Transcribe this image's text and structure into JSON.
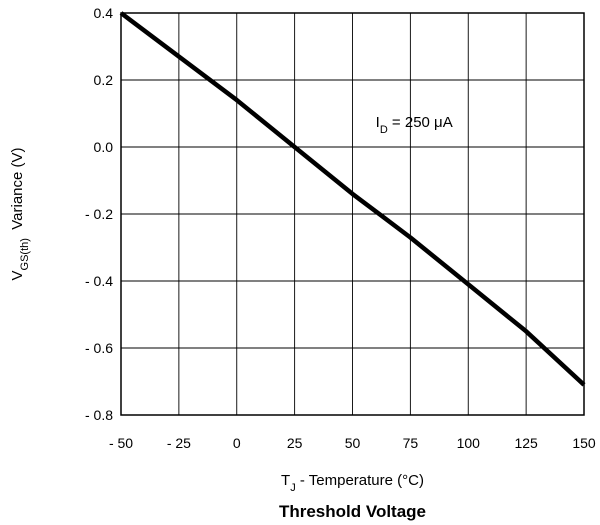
{
  "chart_data": {
    "type": "line",
    "title": "Threshold Voltage",
    "xlabel": {
      "main": "T",
      "sub": "J",
      "rest": " - Temperature (°C)"
    },
    "ylabel": {
      "main": "V",
      "sub": "GS(th)",
      "rest": "  Variance (V)"
    },
    "xlim": [
      -50,
      150
    ],
    "ylim": [
      -0.8,
      0.4
    ],
    "x_ticks": [
      -50,
      -25,
      0,
      25,
      50,
      75,
      100,
      125,
      150
    ],
    "x_tick_labels": [
      "- 50",
      "- 25",
      "0",
      "25",
      "50",
      "75",
      "100",
      "125",
      "150"
    ],
    "y_ticks": [
      0.4,
      0.2,
      0.0,
      -0.2,
      -0.4,
      -0.6,
      -0.8
    ],
    "y_tick_labels": [
      "0.4",
      "0.2",
      "0.0",
      "- 0.2",
      "- 0.4",
      "- 0.6",
      "- 0.8"
    ],
    "grid": true,
    "series": [
      {
        "x": [
          -50,
          -25,
          0,
          25,
          50,
          75,
          100,
          125,
          150
        ],
        "y": [
          0.4,
          0.27,
          0.14,
          0.0,
          -0.14,
          -0.27,
          -0.41,
          -0.55,
          -0.71
        ]
      }
    ],
    "annotations": [
      {
        "main": "I",
        "sub": "D",
        "rest": " = 250 μA",
        "x": 60,
        "y": 0.06
      }
    ],
    "line_color": "#000000"
  }
}
